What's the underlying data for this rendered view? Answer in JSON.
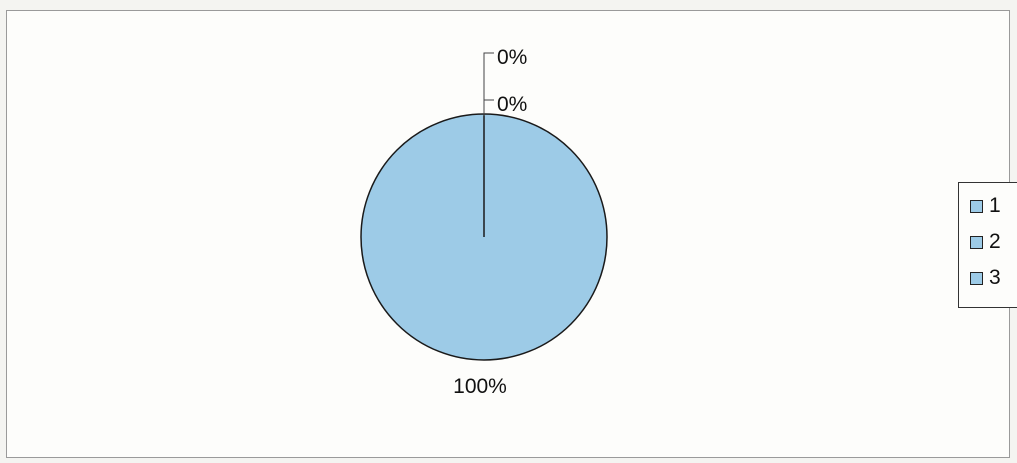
{
  "chart_data": {
    "type": "pie",
    "categories": [
      "1",
      "2",
      "3"
    ],
    "values": [
      0,
      0,
      100
    ],
    "data_labels": [
      "0%",
      "0%",
      "100%"
    ],
    "colors": [
      "#9dcbe7",
      "#9dcbe7",
      "#9dcbe7"
    ],
    "legend": {
      "placement": "right",
      "entries": [
        "1",
        "2",
        "3"
      ]
    }
  }
}
